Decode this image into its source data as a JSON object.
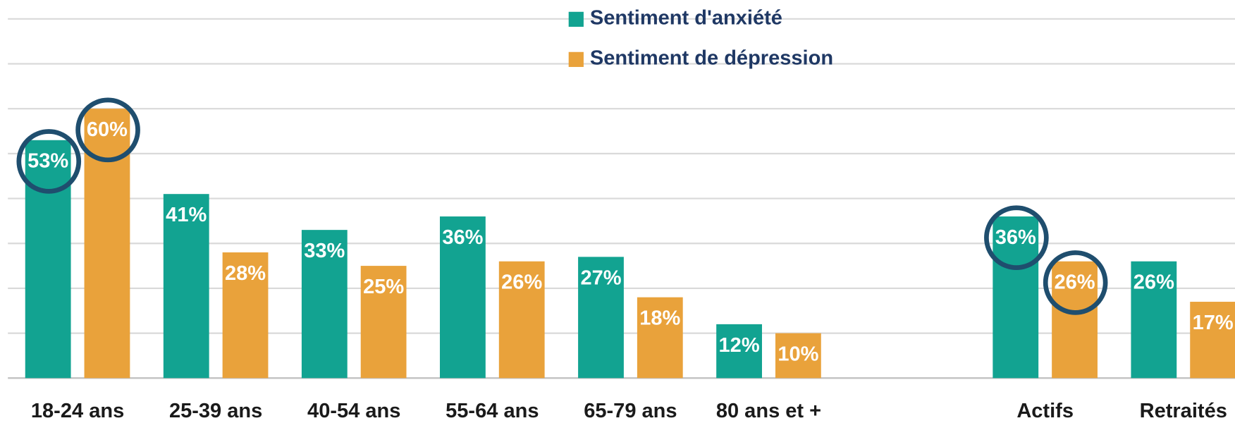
{
  "chart_data": {
    "type": "bar",
    "categories": [
      "18-24 ans",
      "25-39 ans",
      "40-54 ans",
      "55-64 ans",
      "65-79 ans",
      "80 ans et +",
      null,
      "Actifs",
      "Retraités"
    ],
    "series": [
      {
        "name": "Sentiment d'anxiété",
        "color": "#12a391",
        "values": [
          53,
          41,
          33,
          36,
          27,
          12,
          null,
          36,
          26
        ],
        "value_labels": [
          "53%",
          "41%",
          "33%",
          "36%",
          "27%",
          "12%",
          null,
          "36%",
          "26%"
        ]
      },
      {
        "name": "Sentiment de dépression",
        "color": "#e9a23b",
        "values": [
          60,
          28,
          25,
          26,
          18,
          10,
          null,
          26,
          17
        ],
        "value_labels": [
          "60%",
          "28%",
          "25%",
          "26%",
          "18%",
          "10%",
          null,
          "26%",
          "17%"
        ]
      }
    ],
    "ylim": [
      0,
      80
    ],
    "yticks": [
      0,
      10,
      20,
      30,
      40,
      50,
      60,
      70,
      80
    ],
    "grid": true,
    "legend": "top"
  }
}
